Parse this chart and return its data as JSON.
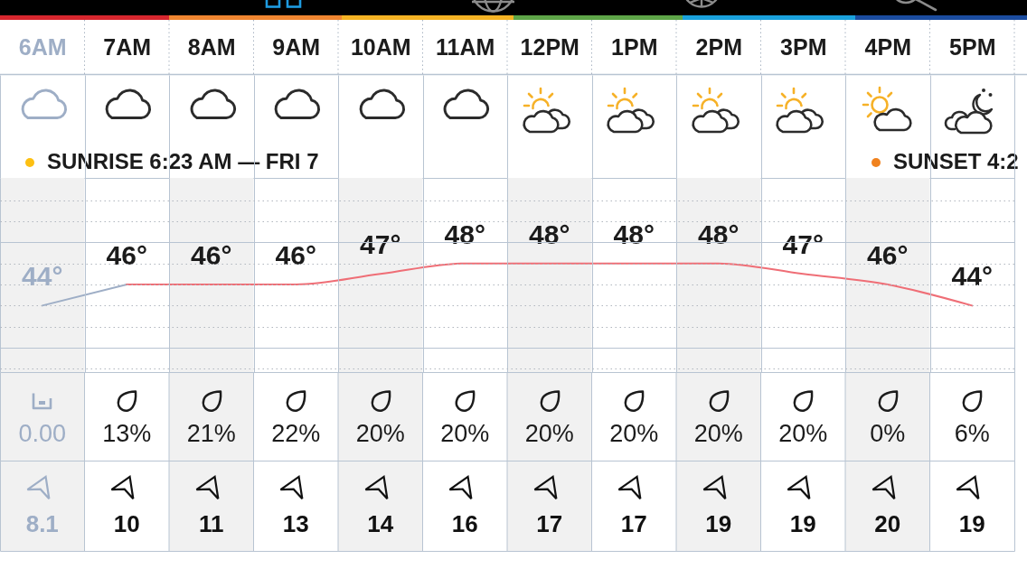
{
  "chart_data": [
    {
      "type": "line",
      "categories": [
        "6AM",
        "7AM",
        "8AM",
        "9AM",
        "10AM",
        "11AM",
        "12PM",
        "1PM",
        "2PM",
        "3PM",
        "4PM",
        "5PM"
      ],
      "series": [
        {
          "color": "#9eaec6",
          "values": [
            44,
            46,
            null,
            null,
            null,
            null,
            null,
            null,
            null,
            null,
            null,
            null
          ],
          "value_labels": [
            "44°",
            null,
            null,
            null,
            null,
            null,
            null,
            null,
            null,
            null,
            null,
            null
          ]
        },
        {
          "color": "#ef6e76",
          "values": [
            null,
            46,
            46,
            46,
            47,
            48,
            48,
            48,
            48,
            47,
            46,
            44
          ],
          "value_labels": [
            null,
            "46°",
            "46°",
            "46°",
            "47°",
            "48°",
            "48°",
            "48°",
            "48°",
            "47°",
            "46°",
            "44°"
          ]
        }
      ],
      "ylim": [
        37.7,
        56.1
      ],
      "yticks": [
        {
          "value": 38,
          "label": null
        },
        {
          "value": 40,
          "label": null
        },
        {
          "value": 42,
          "label": null
        },
        {
          "value": 44,
          "label": null
        },
        {
          "value": 46,
          "label": null
        },
        {
          "value": 48,
          "label": null
        },
        {
          "value": 50,
          "label": null
        },
        {
          "value": 52,
          "label": null
        },
        {
          "value": 54,
          "label": null
        }
      ],
      "tick_labels": "x",
      "grid": true,
      "bands": [
        {
          "axis": "x",
          "from": "6AM",
          "to": "6AM",
          "color": "#f1f1f1"
        },
        {
          "axis": "x",
          "from": "8AM",
          "to": "8AM",
          "color": "#f1f1f1"
        },
        {
          "axis": "x",
          "from": "10AM",
          "to": "10AM",
          "color": "#f1f1f1"
        },
        {
          "axis": "x",
          "from": "12PM",
          "to": "12PM",
          "color": "#f1f1f1"
        },
        {
          "axis": "x",
          "from": "2PM",
          "to": "2PM",
          "color": "#f1f1f1"
        },
        {
          "axis": "x",
          "from": "4PM",
          "to": "4PM",
          "color": "#f1f1f1"
        }
      ],
      "annotations": [
        "SUNRISE 6:23 AM — FRI 7",
        "SUNSET 4:2"
      ]
    },
    {
      "type": "other",
      "annotations": [
        "0.00",
        "13%",
        "21%",
        "22%",
        "20%",
        "20%",
        "20%",
        "20%",
        "20%",
        "20%",
        "0%",
        "6%"
      ],
      "colors": [
        "#9eaec6",
        "#1b1b1b",
        "#1b1b1b",
        "#1b1b1b",
        "#1b1b1b",
        "#1b1b1b",
        "#1b1b1b",
        "#1b1b1b",
        "#1b1b1b",
        "#1b1b1b",
        "#1b1b1b",
        "#1b1b1b"
      ]
    },
    {
      "type": "other",
      "values": [
        8.1,
        10,
        11,
        13,
        14,
        16,
        17,
        17,
        19,
        19,
        20,
        19
      ],
      "data_labels": true,
      "colors": [
        "#9eaec6",
        "#111111",
        "#111111",
        "#111111",
        "#111111",
        "#111111",
        "#111111",
        "#111111",
        "#111111",
        "#111111",
        "#111111",
        "#111111"
      ]
    }
  ]
}
